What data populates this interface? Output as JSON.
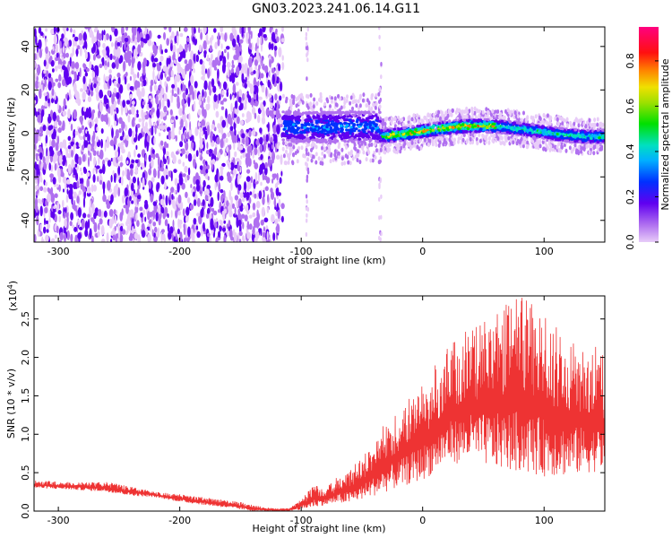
{
  "title": "GN03.2023.241.06.14.G11",
  "chart_data": [
    {
      "type": "heatmap",
      "xlabel": "Height of straight line (km)",
      "ylabel": "Frequency (Hz)",
      "xlim": [
        -320,
        150
      ],
      "ylim": [
        -50,
        49
      ],
      "xticks": [
        -300,
        -200,
        -100,
        0,
        100
      ],
      "yticks": [
        -40,
        -20,
        0,
        20,
        40
      ],
      "colorbar": {
        "label": "Normalized spectral amplitude",
        "range": [
          0,
          0.95
        ],
        "ticks": [
          "0.0",
          "0.2",
          "0.4",
          "0.6",
          "0.8"
        ]
      },
      "regions": [
        {
          "x": [
            -320,
            -115
          ],
          "description_values": {
            "amplitude": 0.05
          }
        },
        {
          "x": [
            -115,
            -35
          ],
          "freq_center": 2,
          "freq_halfwidth": 8,
          "peak_amplitude": 0.3
        },
        {
          "x": [
            -35,
            150
          ],
          "freq_center": 1,
          "freq_halfwidth": 3,
          "peak_amplitude": 0.9
        }
      ]
    },
    {
      "type": "line",
      "xlabel": "Height of straight line (km)",
      "ylabel": "SNR (10 * v/v)",
      "yscale_label": "(x10",
      "yscale_exp": "4",
      "xlim": [
        -320,
        150
      ],
      "ylim": [
        0,
        2.8
      ],
      "xticks": [
        -300,
        -200,
        -100,
        0,
        100
      ],
      "yticks": [
        "0.0",
        "0.5",
        "1.0",
        "1.5",
        "2.0",
        "2.5"
      ],
      "color": "#ee3333",
      "envelope": {
        "x": [
          -320,
          -290,
          -260,
          -240,
          -220,
          -200,
          -180,
          -160,
          -150,
          -140,
          -130,
          -120,
          -110,
          -100,
          -90,
          -80,
          -70,
          -60,
          -50,
          -40,
          -30,
          -20,
          -10,
          0,
          10,
          20,
          40,
          60,
          80,
          100,
          120,
          140,
          150
        ],
        "low": [
          0.3,
          0.28,
          0.25,
          0.2,
          0.18,
          0.12,
          0.08,
          0.04,
          0.02,
          0.0,
          0.0,
          0.0,
          0.0,
          0.02,
          0.05,
          0.08,
          0.1,
          0.1,
          0.15,
          0.2,
          0.25,
          0.3,
          0.35,
          0.4,
          0.5,
          0.6,
          0.65,
          0.55,
          0.5,
          0.45,
          0.45,
          0.5,
          0.55
        ],
        "high": [
          0.4,
          0.38,
          0.38,
          0.32,
          0.25,
          0.22,
          0.18,
          0.14,
          0.12,
          0.08,
          0.05,
          0.03,
          0.04,
          0.15,
          0.35,
          0.3,
          0.45,
          0.55,
          0.7,
          0.9,
          1.2,
          1.3,
          1.5,
          1.7,
          1.9,
          2.2,
          2.4,
          2.6,
          2.8,
          2.6,
          2.3,
          2.2,
          2.0
        ]
      }
    }
  ]
}
